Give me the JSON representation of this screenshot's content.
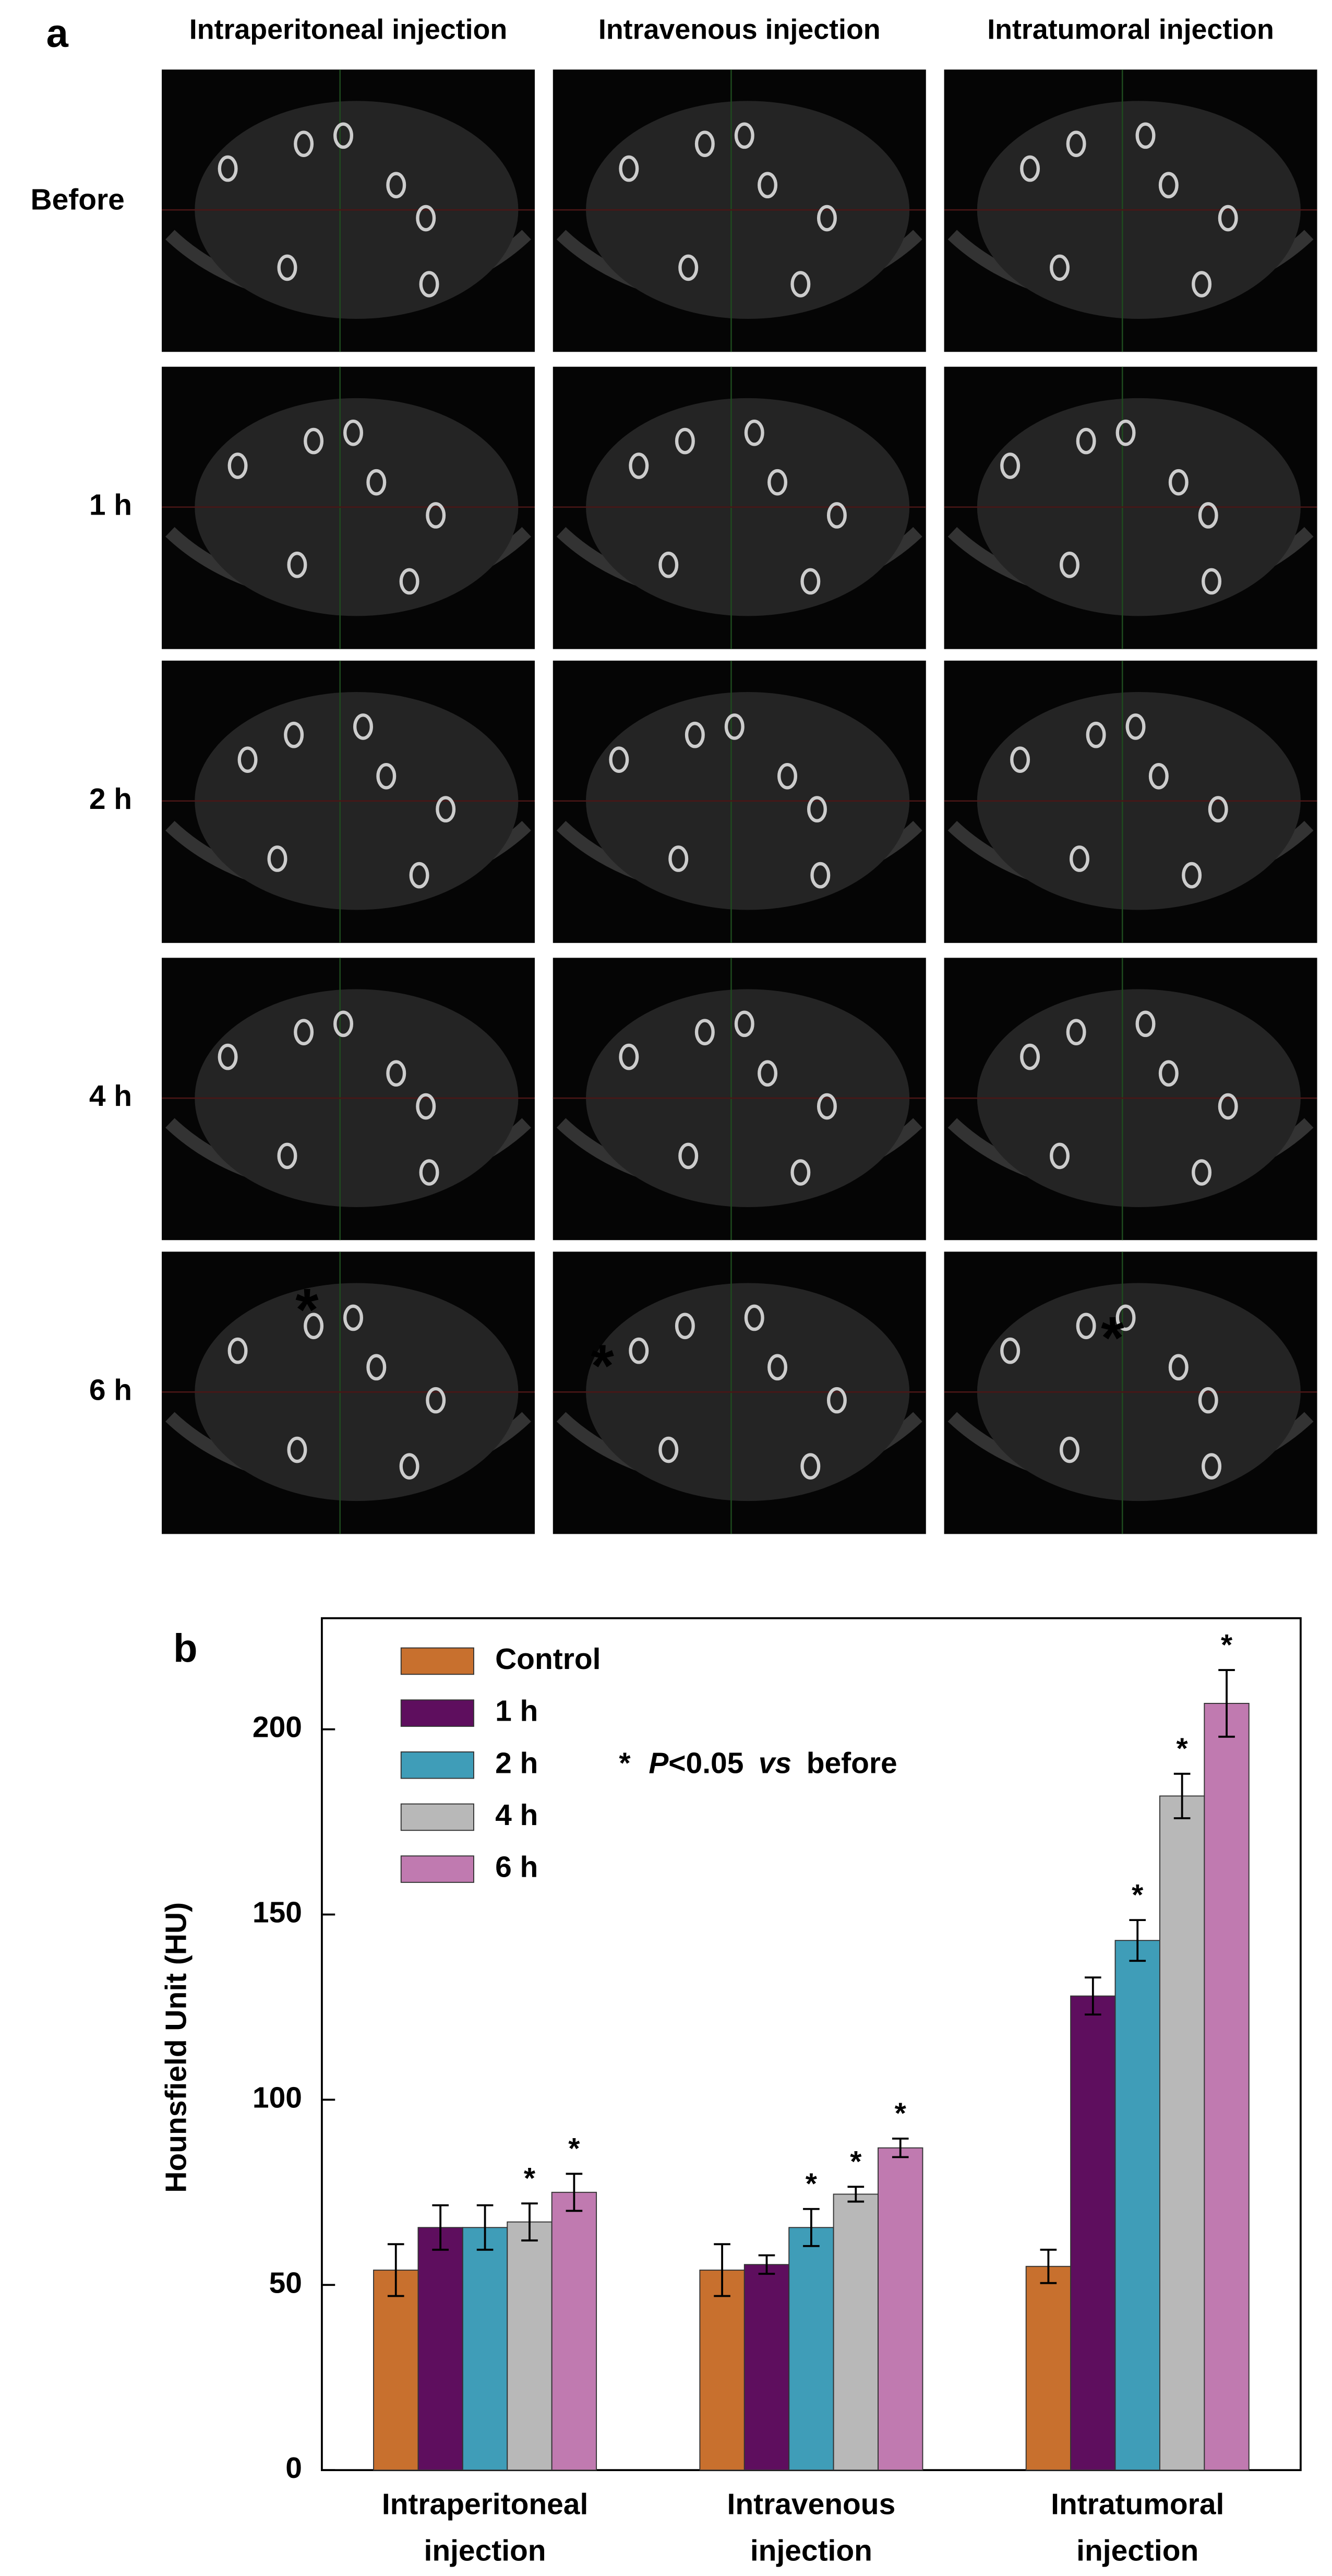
{
  "panel_a": {
    "label": "a",
    "columns": [
      "Intraperitoneal injection",
      "Intravenous injection",
      "Intratumoral injection"
    ],
    "rows": [
      "Before",
      "1 h",
      "2 h",
      "4 h",
      "6 h"
    ],
    "marker": "*"
  },
  "chart_data": {
    "type": "bar",
    "panel_label": "b",
    "y_label": "Hounsfield Unit (HU)",
    "categories": [
      "Intraperitoneal injection",
      "Intravenous injection",
      "Intratumoral injection"
    ],
    "series": [
      {
        "name": "Control",
        "color": "#c8702e",
        "values": [
          54,
          54,
          55
        ],
        "errors": [
          7,
          7,
          4.5
        ],
        "significance": [
          null,
          null,
          null
        ]
      },
      {
        "name": "1 h",
        "color": "#5e0e5e",
        "values": [
          65.5,
          55.5,
          128
        ],
        "errors": [
          6,
          2.5,
          5
        ],
        "significance": [
          null,
          null,
          null
        ]
      },
      {
        "name": "2 h",
        "color": "#3f9db8",
        "values": [
          65.5,
          65.5,
          143
        ],
        "errors": [
          6,
          5,
          5.5
        ],
        "significance": [
          null,
          "*",
          "*"
        ]
      },
      {
        "name": "4 h",
        "color": "#b8b8b8",
        "values": [
          67,
          74.5,
          182
        ],
        "errors": [
          5,
          2,
          6
        ],
        "significance": [
          "*",
          "*",
          "*"
        ]
      },
      {
        "name": "6 h",
        "color": "#c07ab0",
        "values": [
          75,
          87,
          207
        ],
        "errors": [
          5,
          2.5,
          9
        ],
        "significance": [
          "*",
          "*",
          "*"
        ]
      }
    ],
    "note": [
      "*",
      "P",
      "<0.05",
      "vs",
      "before"
    ],
    "ylim": [
      0,
      230
    ],
    "yticks": [
      0,
      50,
      100,
      150,
      200
    ]
  }
}
